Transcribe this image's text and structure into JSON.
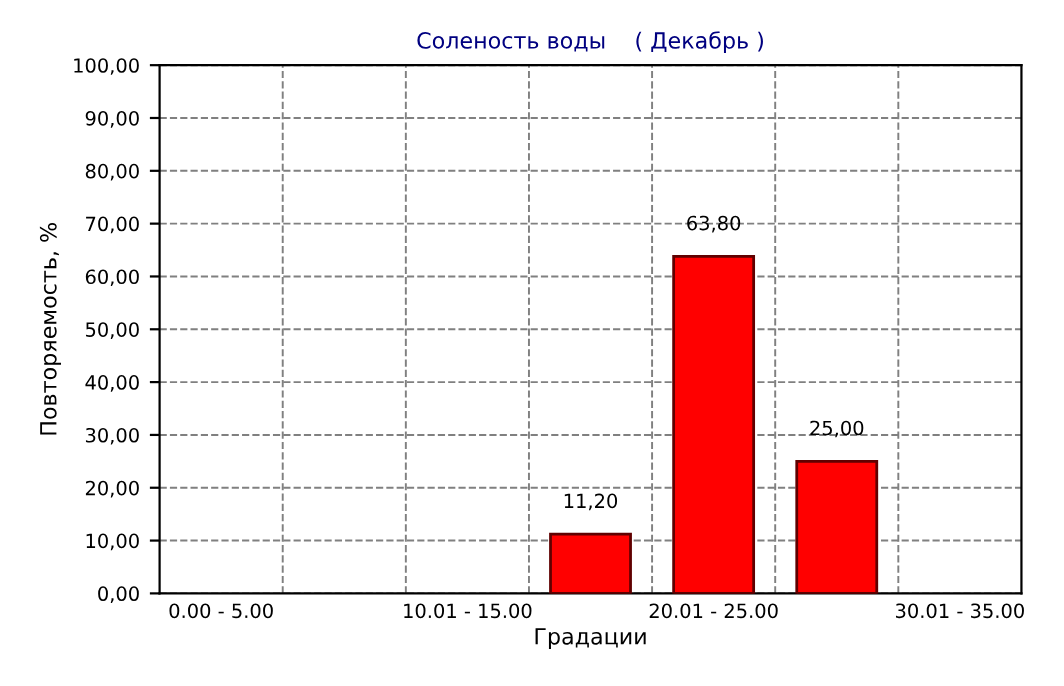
{
  "chart_data": {
    "type": "bar",
    "title": "Соленость воды    ( Декабрь )",
    "xlabel": "Градации",
    "ylabel": "Повторяемость, %",
    "categories": [
      "0.00 - 5.00",
      null,
      "10.01 - 15.00",
      null,
      "20.01 - 25.00",
      null,
      "30.01 - 35.00"
    ],
    "values": [
      null,
      null,
      null,
      11.2,
      63.8,
      25.0,
      null
    ],
    "value_labels": [
      null,
      null,
      null,
      "11,20",
      "63,80",
      "25,00",
      null
    ],
    "color": "#ff0000",
    "ylim": [
      0,
      100
    ],
    "yticks": [
      {
        "value": 0,
        "label": "0,00"
      },
      {
        "value": 10,
        "label": "10,00"
      },
      {
        "value": 20,
        "label": "20,00"
      },
      {
        "value": 30,
        "label": "30,00"
      },
      {
        "value": 40,
        "label": "40,00"
      },
      {
        "value": 50,
        "label": "50,00"
      },
      {
        "value": 60,
        "label": "60,00"
      },
      {
        "value": 70,
        "label": "70,00"
      },
      {
        "value": 80,
        "label": "80,00"
      },
      {
        "value": 90,
        "label": "90,00"
      },
      {
        "value": 100,
        "label": "100,00"
      }
    ],
    "grid": true,
    "legend": false
  }
}
